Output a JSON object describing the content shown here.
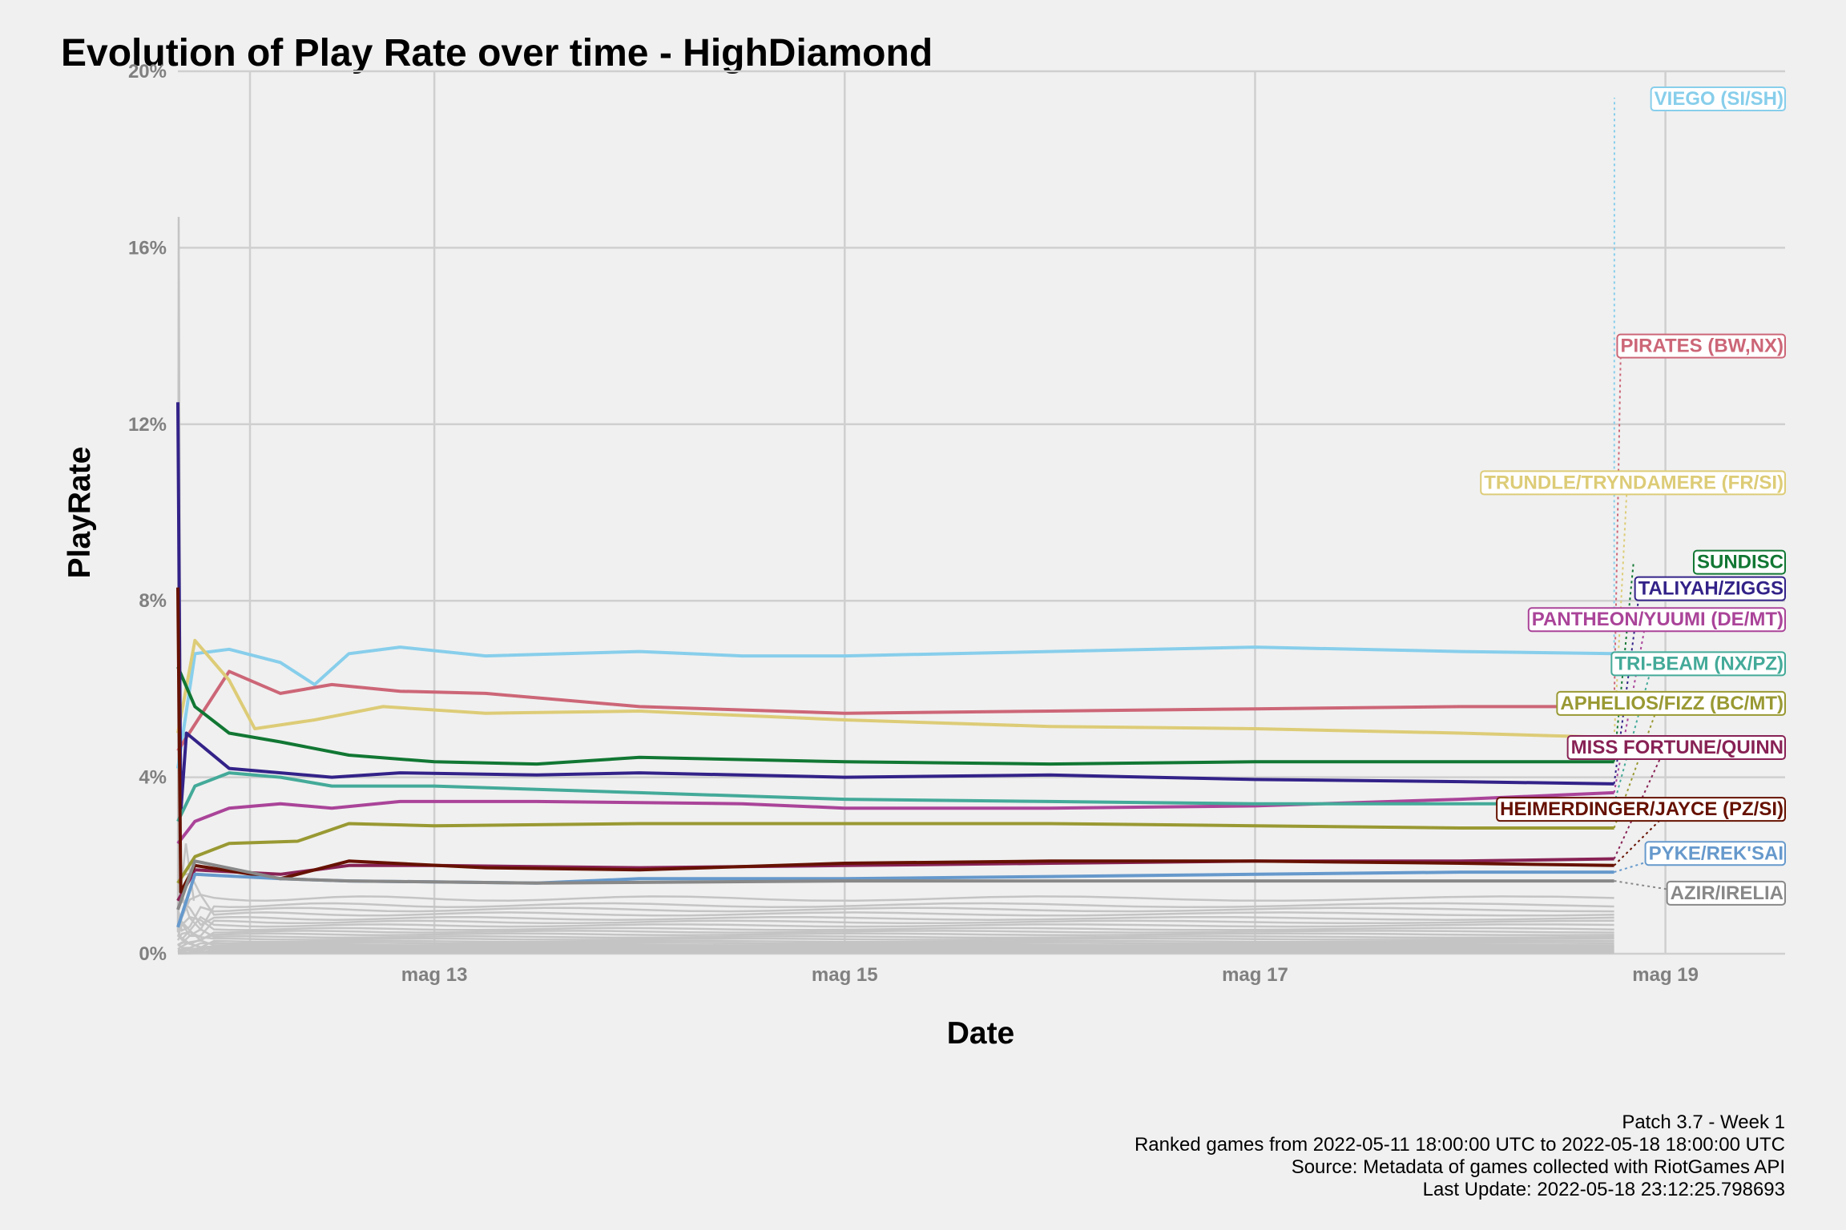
{
  "chart_data": {
    "type": "line",
    "title": "Evolution of Play Rate over time - HighDiamond",
    "xlabel": "Date",
    "ylabel": "PlayRate",
    "x_range": [
      "2022-05-11 18:00",
      "2022-05-19 14:00"
    ],
    "y_range": [
      0,
      20
    ],
    "x_ticks": [
      {
        "x": "2022-05-13 00:00",
        "label": "mag 13"
      },
      {
        "x": "2022-05-15 00:00",
        "label": "mag 15"
      },
      {
        "x": "2022-05-17 00:00",
        "label": "mag 17"
      },
      {
        "x": "2022-05-19 00:00",
        "label": "mag 19"
      }
    ],
    "y_ticks": [
      {
        "y": 0,
        "label": "0%"
      },
      {
        "y": 4,
        "label": "4%"
      },
      {
        "y": 8,
        "label": "8%"
      },
      {
        "y": 12,
        "label": "12%"
      },
      {
        "y": 16,
        "label": "16%"
      },
      {
        "y": 20,
        "label": "20%"
      }
    ],
    "grid": true,
    "legend": "direct labels at right edge",
    "background_series_color": "#c4c4c4",
    "background_series_levels": [
      1.25,
      1.1,
      1.0,
      0.9,
      0.8,
      0.72,
      0.64,
      0.56,
      0.5,
      0.44,
      0.38,
      0.33,
      0.28,
      0.24,
      0.2,
      0.17,
      0.14,
      0.11,
      0.08,
      0.06,
      0.04,
      0.02
    ],
    "series": [
      {
        "name": "VIEGO (SI/SH)",
        "color": "#87ceeb",
        "label_y": 19.4,
        "points": [
          [
            "2022-05-11 18:00",
            4.2
          ],
          [
            "2022-05-11 20:00",
            6.8
          ],
          [
            "2022-05-12 00:00",
            6.9
          ],
          [
            "2022-05-12 06:00",
            6.6
          ],
          [
            "2022-05-12 10:00",
            6.1
          ],
          [
            "2022-05-12 14:00",
            6.8
          ],
          [
            "2022-05-12 20:00",
            6.95
          ],
          [
            "2022-05-13 06:00",
            6.75
          ],
          [
            "2022-05-14 00:00",
            6.85
          ],
          [
            "2022-05-14 12:00",
            6.75
          ],
          [
            "2022-05-15 00:00",
            6.75
          ],
          [
            "2022-05-16 00:00",
            6.85
          ],
          [
            "2022-05-17 00:00",
            6.95
          ],
          [
            "2022-05-18 00:00",
            6.85
          ],
          [
            "2022-05-18 18:00",
            6.8
          ]
        ]
      },
      {
        "name": "PIRATES (BW,NX)",
        "color": "#cc6677",
        "label_y": 13.8,
        "points": [
          [
            "2022-05-11 18:00",
            4.6
          ],
          [
            "2022-05-11 21:00",
            5.5
          ],
          [
            "2022-05-12 00:00",
            6.4
          ],
          [
            "2022-05-12 06:00",
            5.9
          ],
          [
            "2022-05-12 12:00",
            6.1
          ],
          [
            "2022-05-12 20:00",
            5.95
          ],
          [
            "2022-05-13 06:00",
            5.9
          ],
          [
            "2022-05-14 00:00",
            5.6
          ],
          [
            "2022-05-15 00:00",
            5.45
          ],
          [
            "2022-05-16 00:00",
            5.5
          ],
          [
            "2022-05-17 00:00",
            5.55
          ],
          [
            "2022-05-18 00:00",
            5.6
          ],
          [
            "2022-05-18 18:00",
            5.6
          ]
        ]
      },
      {
        "name": "TRUNDLE/TRYNDAMERE (FR/SI)",
        "color": "#ddcc77",
        "label_y": 10.7,
        "points": [
          [
            "2022-05-11 18:00",
            5.0
          ],
          [
            "2022-05-11 20:00",
            7.1
          ],
          [
            "2022-05-12 00:00",
            6.2
          ],
          [
            "2022-05-12 03:00",
            5.1
          ],
          [
            "2022-05-12 10:00",
            5.3
          ],
          [
            "2022-05-12 18:00",
            5.6
          ],
          [
            "2022-05-13 06:00",
            5.45
          ],
          [
            "2022-05-14 00:00",
            5.5
          ],
          [
            "2022-05-15 00:00",
            5.3
          ],
          [
            "2022-05-16 00:00",
            5.15
          ],
          [
            "2022-05-17 00:00",
            5.1
          ],
          [
            "2022-05-18 00:00",
            5.0
          ],
          [
            "2022-05-18 18:00",
            4.9
          ]
        ]
      },
      {
        "name": "SUNDISC",
        "color": "#117733",
        "label_y": 8.9,
        "points": [
          [
            "2022-05-11 18:00",
            6.5
          ],
          [
            "2022-05-11 20:00",
            5.6
          ],
          [
            "2022-05-12 00:00",
            5.0
          ],
          [
            "2022-05-12 06:00",
            4.8
          ],
          [
            "2022-05-12 14:00",
            4.5
          ],
          [
            "2022-05-13 00:00",
            4.35
          ],
          [
            "2022-05-13 12:00",
            4.3
          ],
          [
            "2022-05-14 00:00",
            4.45
          ],
          [
            "2022-05-15 00:00",
            4.35
          ],
          [
            "2022-05-16 00:00",
            4.3
          ],
          [
            "2022-05-17 00:00",
            4.35
          ],
          [
            "2022-05-18 00:00",
            4.35
          ],
          [
            "2022-05-18 18:00",
            4.35
          ]
        ]
      },
      {
        "name": "TALIYAH/ZIGGS",
        "color": "#332288",
        "label_y": 8.3,
        "points": [
          [
            "2022-05-11 18:00",
            12.5
          ],
          [
            "2022-05-11 18:20",
            3.2
          ],
          [
            "2022-05-11 19:00",
            5.0
          ],
          [
            "2022-05-12 00:00",
            4.2
          ],
          [
            "2022-05-12 06:00",
            4.1
          ],
          [
            "2022-05-12 12:00",
            4.0
          ],
          [
            "2022-05-12 20:00",
            4.1
          ],
          [
            "2022-05-13 12:00",
            4.05
          ],
          [
            "2022-05-14 00:00",
            4.1
          ],
          [
            "2022-05-15 00:00",
            4.0
          ],
          [
            "2022-05-16 00:00",
            4.05
          ],
          [
            "2022-05-17 00:00",
            3.95
          ],
          [
            "2022-05-18 00:00",
            3.9
          ],
          [
            "2022-05-18 18:00",
            3.85
          ]
        ]
      },
      {
        "name": "PANTHEON/YUUMI (DE/MT)",
        "color": "#aa4499",
        "label_y": 7.6,
        "points": [
          [
            "2022-05-11 18:00",
            2.5
          ],
          [
            "2022-05-11 20:00",
            3.0
          ],
          [
            "2022-05-12 00:00",
            3.3
          ],
          [
            "2022-05-12 06:00",
            3.4
          ],
          [
            "2022-05-12 12:00",
            3.3
          ],
          [
            "2022-05-12 20:00",
            3.45
          ],
          [
            "2022-05-13 12:00",
            3.45
          ],
          [
            "2022-05-14 12:00",
            3.4
          ],
          [
            "2022-05-15 00:00",
            3.3
          ],
          [
            "2022-05-16 00:00",
            3.3
          ],
          [
            "2022-05-17 00:00",
            3.35
          ],
          [
            "2022-05-18 00:00",
            3.5
          ],
          [
            "2022-05-18 18:00",
            3.65
          ]
        ]
      },
      {
        "name": "TRI-BEAM (NX/PZ)",
        "color": "#44aa99",
        "label_y": 6.6,
        "points": [
          [
            "2022-05-11 18:00",
            3.0
          ],
          [
            "2022-05-11 20:00",
            3.8
          ],
          [
            "2022-05-12 00:00",
            4.1
          ],
          [
            "2022-05-12 06:00",
            4.0
          ],
          [
            "2022-05-12 12:00",
            3.8
          ],
          [
            "2022-05-13 00:00",
            3.8
          ],
          [
            "2022-05-14 00:00",
            3.65
          ],
          [
            "2022-05-15 00:00",
            3.5
          ],
          [
            "2022-05-16 00:00",
            3.45
          ],
          [
            "2022-05-17 00:00",
            3.4
          ],
          [
            "2022-05-18 00:00",
            3.4
          ],
          [
            "2022-05-18 18:00",
            3.4
          ]
        ]
      },
      {
        "name": "APHELIOS/FIZZ (BC/MT)",
        "color": "#999933",
        "label_y": 5.7,
        "points": [
          [
            "2022-05-11 18:00",
            1.6
          ],
          [
            "2022-05-11 20:00",
            2.2
          ],
          [
            "2022-05-12 00:00",
            2.5
          ],
          [
            "2022-05-12 08:00",
            2.55
          ],
          [
            "2022-05-12 14:00",
            2.95
          ],
          [
            "2022-05-13 00:00",
            2.9
          ],
          [
            "2022-05-14 00:00",
            2.95
          ],
          [
            "2022-05-15 00:00",
            2.95
          ],
          [
            "2022-05-16 00:00",
            2.95
          ],
          [
            "2022-05-17 00:00",
            2.9
          ],
          [
            "2022-05-18 00:00",
            2.85
          ],
          [
            "2022-05-18 18:00",
            2.85
          ]
        ]
      },
      {
        "name": "MISS FORTUNE/QUINN",
        "color": "#882255",
        "label_y": 4.7,
        "points": [
          [
            "2022-05-11 18:00",
            1.2
          ],
          [
            "2022-05-11 20:00",
            1.9
          ],
          [
            "2022-05-12 06:00",
            1.8
          ],
          [
            "2022-05-12 14:00",
            2.0
          ],
          [
            "2022-05-13 00:00",
            2.0
          ],
          [
            "2022-05-14 00:00",
            1.95
          ],
          [
            "2022-05-15 00:00",
            2.0
          ],
          [
            "2022-05-16 00:00",
            2.05
          ],
          [
            "2022-05-17 00:00",
            2.1
          ],
          [
            "2022-05-18 00:00",
            2.1
          ],
          [
            "2022-05-18 18:00",
            2.15
          ]
        ]
      },
      {
        "name": "HEIMERDINGER/JAYCE (PZ/SI)",
        "color": "#661100",
        "label_y": 3.3,
        "points": [
          [
            "2022-05-11 18:00",
            8.3
          ],
          [
            "2022-05-11 18:20",
            1.4
          ],
          [
            "2022-05-11 20:00",
            2.0
          ],
          [
            "2022-05-12 06:00",
            1.7
          ],
          [
            "2022-05-12 14:00",
            2.1
          ],
          [
            "2022-05-13 06:00",
            1.95
          ],
          [
            "2022-05-14 00:00",
            1.9
          ],
          [
            "2022-05-15 00:00",
            2.05
          ],
          [
            "2022-05-16 00:00",
            2.1
          ],
          [
            "2022-05-17 00:00",
            2.1
          ],
          [
            "2022-05-18 00:00",
            2.05
          ],
          [
            "2022-05-18 18:00",
            2.0
          ]
        ]
      },
      {
        "name": "PYKE/REK'SAI",
        "color": "#6699cc",
        "label_y": 2.3,
        "points": [
          [
            "2022-05-11 18:00",
            0.6
          ],
          [
            "2022-05-11 20:00",
            1.8
          ],
          [
            "2022-05-12 06:00",
            1.7
          ],
          [
            "2022-05-12 14:00",
            1.65
          ],
          [
            "2022-05-13 12:00",
            1.6
          ],
          [
            "2022-05-14 00:00",
            1.7
          ],
          [
            "2022-05-15 00:00",
            1.7
          ],
          [
            "2022-05-16 00:00",
            1.75
          ],
          [
            "2022-05-17 00:00",
            1.8
          ],
          [
            "2022-05-18 00:00",
            1.85
          ],
          [
            "2022-05-18 18:00",
            1.85
          ]
        ]
      },
      {
        "name": "AZIR/IRELIA",
        "color": "#888888",
        "label_y": 1.4,
        "points": [
          [
            "2022-05-11 18:00",
            1.0
          ],
          [
            "2022-05-11 20:00",
            2.1
          ],
          [
            "2022-05-12 06:00",
            1.7
          ],
          [
            "2022-05-12 14:00",
            1.65
          ],
          [
            "2022-05-13 12:00",
            1.6
          ],
          [
            "2022-05-15 00:00",
            1.65
          ],
          [
            "2022-05-17 00:00",
            1.65
          ],
          [
            "2022-05-18 00:00",
            1.65
          ],
          [
            "2022-05-18 18:00",
            1.65
          ]
        ]
      }
    ]
  },
  "caption": [
    "Patch 3.7 - Week 1",
    "Ranked games from 2022-05-11 18:00:00 UTC to 2022-05-18 18:00:00 UTC",
    "Source: Metadata of games collected with RiotGames API",
    "Last Update: 2022-05-18 23:12:25.798693"
  ]
}
